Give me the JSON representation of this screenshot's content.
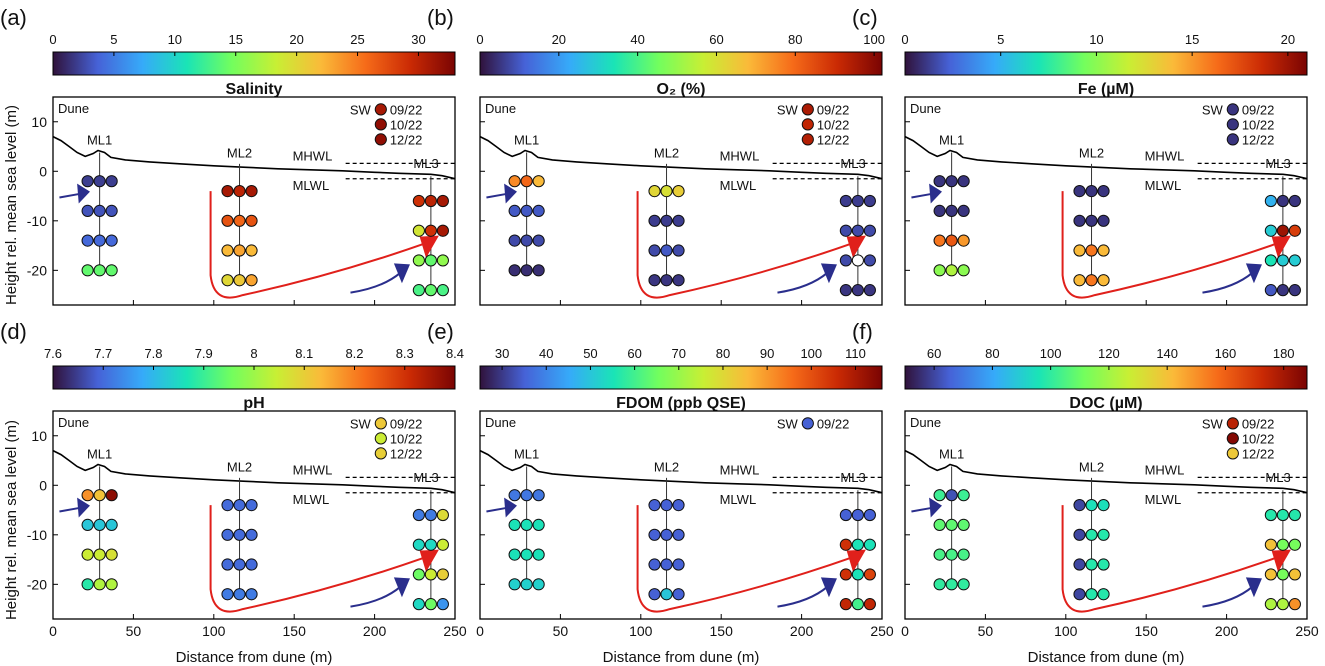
{
  "figure": {
    "ylabel": "Height rel. mean sea level (m)",
    "xlabel": "Distance from dune (m)",
    "labels": {
      "dune": "Dune",
      "ml1": "ML1",
      "ml2": "ML2",
      "ml3": "ML3",
      "mhwl": "MHWL",
      "mlwl": "MLWL",
      "sw": "SW"
    },
    "x_axis": {
      "range": [
        0,
        250
      ],
      "ticks": [
        "0",
        "50",
        "100",
        "150",
        "200",
        "250"
      ]
    },
    "y_axis": {
      "range": [
        -27,
        15
      ],
      "ticks": [
        "10",
        "0",
        "-10",
        "-20"
      ]
    },
    "colormap": [
      "#30123b",
      "#4662d7",
      "#36aaf9",
      "#1ae4b6",
      "#72fe5e",
      "#c8ef34",
      "#faba39",
      "#f66b19",
      "#ca2a04",
      "#7a0403"
    ]
  },
  "chart_data": [
    {
      "panel": "(a)",
      "type": "scatter",
      "title": "Salinity",
      "colorbar": {
        "range": [
          0,
          33
        ],
        "ticks": [
          "0",
          "5",
          "10",
          "15",
          "20",
          "25",
          "30"
        ],
        "tick_values": [
          0,
          5,
          10,
          15,
          20,
          25,
          30
        ]
      },
      "sw": [
        {
          "date": "09/22",
          "value": 31
        },
        {
          "date": "10/22",
          "value": 32
        },
        {
          "date": "12/22",
          "value": 32
        }
      ],
      "points": [
        {
          "x": 29,
          "y": -2,
          "values": [
            2,
            2,
            2
          ]
        },
        {
          "x": 29,
          "y": -8,
          "values": [
            3,
            3,
            3
          ]
        },
        {
          "x": 29,
          "y": -14,
          "values": [
            4,
            4,
            4
          ]
        },
        {
          "x": 29,
          "y": -20,
          "values": [
            14,
            14,
            14
          ]
        },
        {
          "x": 116,
          "y": -4,
          "values": [
            31,
            30,
            31
          ]
        },
        {
          "x": 116,
          "y": -10,
          "values": [
            27,
            26,
            27
          ]
        },
        {
          "x": 116,
          "y": -16,
          "values": [
            22,
            23,
            22
          ]
        },
        {
          "x": 116,
          "y": -22,
          "values": [
            20,
            21,
            23
          ]
        },
        {
          "x": 235,
          "y": -6,
          "values": [
            29,
            30,
            31
          ]
        },
        {
          "x": 235,
          "y": -12,
          "values": [
            19,
            29,
            31
          ]
        },
        {
          "x": 235,
          "y": -18,
          "values": [
            16,
            14,
            16
          ]
        },
        {
          "x": 235,
          "y": -24,
          "values": [
            13,
            14,
            13
          ]
        }
      ]
    },
    {
      "panel": "(b)",
      "type": "scatter",
      "title": "O₂ (%)",
      "colorbar": {
        "range": [
          0,
          102
        ],
        "ticks": [
          "0",
          "20",
          "40",
          "60",
          "80",
          "100"
        ],
        "tick_values": [
          0,
          20,
          40,
          60,
          80,
          100
        ]
      },
      "sw": [
        {
          "date": "09/22",
          "value": 95
        },
        {
          "date": "10/22",
          "value": 92
        },
        {
          "date": "12/22",
          "value": 94
        }
      ],
      "points": [
        {
          "x": 29,
          "y": -2,
          "values": [
            75,
            80,
            68
          ]
        },
        {
          "x": 29,
          "y": -8,
          "values": [
            10,
            10,
            10
          ]
        },
        {
          "x": 29,
          "y": -14,
          "values": [
            8,
            8,
            8
          ]
        },
        {
          "x": 29,
          "y": -20,
          "values": [
            4,
            4,
            4
          ]
        },
        {
          "x": 116,
          "y": -4,
          "values": [
            62,
            60,
            64
          ]
        },
        {
          "x": 116,
          "y": -10,
          "values": [
            6,
            6,
            6
          ]
        },
        {
          "x": 116,
          "y": -16,
          "values": [
            8,
            10,
            8
          ]
        },
        {
          "x": 116,
          "y": -22,
          "values": [
            5,
            5,
            5
          ]
        },
        {
          "x": 235,
          "y": -6,
          "values": [
            6,
            6,
            6
          ]
        },
        {
          "x": 235,
          "y": -12,
          "values": [
            8,
            8,
            8
          ]
        },
        {
          "x": 235,
          "y": -18,
          "values": [
            8,
            null,
            8
          ]
        },
        {
          "x": 235,
          "y": -24,
          "values": [
            5,
            5,
            5
          ]
        }
      ]
    },
    {
      "panel": "(c)",
      "type": "scatter",
      "title": "Fe (µM)",
      "colorbar": {
        "range": [
          0,
          21
        ],
        "ticks": [
          "0",
          "5",
          "10",
          "15",
          "20"
        ],
        "tick_values": [
          0,
          5,
          10,
          15,
          20
        ]
      },
      "sw": [
        {
          "date": "09/22",
          "value": 1
        },
        {
          "date": "10/22",
          "value": 1
        },
        {
          "date": "12/22",
          "value": 1
        }
      ],
      "points": [
        {
          "x": 29,
          "y": -2,
          "values": [
            1,
            1,
            1
          ]
        },
        {
          "x": 29,
          "y": -8,
          "values": [
            1,
            1,
            1
          ]
        },
        {
          "x": 29,
          "y": -14,
          "values": [
            16,
            17,
            15
          ]
        },
        {
          "x": 29,
          "y": -20,
          "values": [
            10,
            11,
            10
          ]
        },
        {
          "x": 116,
          "y": -4,
          "values": [
            1,
            1,
            1
          ]
        },
        {
          "x": 116,
          "y": -10,
          "values": [
            1,
            1,
            1
          ]
        },
        {
          "x": 116,
          "y": -16,
          "values": [
            14,
            16,
            14
          ]
        },
        {
          "x": 116,
          "y": -22,
          "values": [
            14,
            16,
            14
          ]
        },
        {
          "x": 235,
          "y": -6,
          "values": [
            5,
            1,
            1
          ]
        },
        {
          "x": 235,
          "y": -12,
          "values": [
            6,
            20,
            18
          ]
        },
        {
          "x": 235,
          "y": -18,
          "values": [
            7,
            6,
            6
          ]
        },
        {
          "x": 235,
          "y": -24,
          "values": [
            2,
            1,
            1
          ]
        }
      ]
    },
    {
      "panel": "(d)",
      "type": "scatter",
      "title": "pH",
      "colorbar": {
        "range": [
          7.6,
          8.4
        ],
        "ticks": [
          "7.6",
          "7.7",
          "7.8",
          "7.9",
          "8",
          "8.1",
          "8.2",
          "8.3",
          "8.4"
        ],
        "tick_values": [
          7.6,
          7.7,
          7.8,
          7.9,
          8.0,
          8.1,
          8.2,
          8.3,
          8.4
        ]
      },
      "sw": [
        {
          "date": "09/22",
          "value": 8.11
        },
        {
          "date": "10/22",
          "value": 8.05
        },
        {
          "date": "12/22",
          "value": 8.1
        }
      ],
      "points": [
        {
          "x": 29,
          "y": -2,
          "values": [
            8.18,
            8.12,
            8.38
          ]
        },
        {
          "x": 29,
          "y": -8,
          "values": [
            7.82,
            7.82,
            7.82
          ]
        },
        {
          "x": 29,
          "y": -14,
          "values": [
            8.05,
            8.05,
            8.07
          ]
        },
        {
          "x": 29,
          "y": -20,
          "values": [
            7.88,
            8.02,
            8.02
          ]
        },
        {
          "x": 116,
          "y": -4,
          "values": [
            7.7,
            7.7,
            7.7
          ]
        },
        {
          "x": 116,
          "y": -10,
          "values": [
            7.7,
            7.7,
            7.7
          ]
        },
        {
          "x": 116,
          "y": -16,
          "values": [
            7.7,
            7.7,
            7.7
          ]
        },
        {
          "x": 116,
          "y": -22,
          "values": [
            7.72,
            7.72,
            7.72
          ]
        },
        {
          "x": 235,
          "y": -6,
          "values": [
            7.72,
            7.72,
            8.08
          ]
        },
        {
          "x": 235,
          "y": -12,
          "values": [
            7.85,
            7.85,
            8.05
          ]
        },
        {
          "x": 235,
          "y": -18,
          "values": [
            7.95,
            8.05,
            8.1
          ]
        },
        {
          "x": 235,
          "y": -24,
          "values": [
            7.85,
            7.95,
            7.75
          ]
        }
      ]
    },
    {
      "panel": "(e)",
      "type": "scatter",
      "title": "FDOM (ppb QSE)",
      "colorbar": {
        "range": [
          25,
          116
        ],
        "ticks": [
          "30",
          "40",
          "50",
          "60",
          "70",
          "80",
          "90",
          "100",
          "110"
        ],
        "tick_values": [
          30,
          40,
          50,
          60,
          70,
          80,
          90,
          100,
          110
        ]
      },
      "sw": [
        {
          "date": "09/22",
          "value": 35
        }
      ],
      "points": [
        {
          "x": 29,
          "y": -2,
          "values": [
            38,
            38,
            38
          ]
        },
        {
          "x": 29,
          "y": -8,
          "values": [
            55,
            55,
            55
          ]
        },
        {
          "x": 29,
          "y": -14,
          "values": [
            55,
            55,
            55
          ]
        },
        {
          "x": 29,
          "y": -20,
          "values": [
            52,
            52,
            52
          ]
        },
        {
          "x": 116,
          "y": -4,
          "values": [
            35,
            35,
            35
          ]
        },
        {
          "x": 116,
          "y": -10,
          "values": [
            35,
            35,
            35
          ]
        },
        {
          "x": 116,
          "y": -16,
          "values": [
            35,
            35,
            35
          ]
        },
        {
          "x": 116,
          "y": -22,
          "values": [
            35,
            50,
            35
          ]
        },
        {
          "x": 235,
          "y": -6,
          "values": [
            35,
            35,
            35
          ]
        },
        {
          "x": 235,
          "y": -12,
          "values": [
            105,
            55,
            55
          ]
        },
        {
          "x": 235,
          "y": -18,
          "values": [
            105,
            55,
            102
          ]
        },
        {
          "x": 235,
          "y": -24,
          "values": [
            107,
            60,
            107
          ]
        }
      ]
    },
    {
      "panel": "(f)",
      "type": "scatter",
      "title": "DOC (µM)",
      "colorbar": {
        "range": [
          50,
          188
        ],
        "ticks": [
          "60",
          "80",
          "100",
          "120",
          "140",
          "160",
          "180"
        ],
        "tick_values": [
          60,
          80,
          100,
          120,
          140,
          160,
          180
        ]
      },
      "sw": [
        {
          "date": "09/22",
          "value": 176
        },
        {
          "date": "10/22",
          "value": 186
        },
        {
          "date": "12/22",
          "value": 138
        }
      ],
      "points": [
        {
          "x": 29,
          "y": -2,
          "values": [
            102,
            62,
            102
          ]
        },
        {
          "x": 29,
          "y": -8,
          "values": [
            108,
            108,
            108
          ]
        },
        {
          "x": 29,
          "y": -14,
          "values": [
            104,
            104,
            104
          ]
        },
        {
          "x": 29,
          "y": -20,
          "values": [
            100,
            100,
            100
          ]
        },
        {
          "x": 116,
          "y": -4,
          "values": [
            60,
            95,
            95
          ]
        },
        {
          "x": 116,
          "y": -10,
          "values": [
            60,
            98,
            98
          ]
        },
        {
          "x": 116,
          "y": -16,
          "values": [
            60,
            98,
            98
          ]
        },
        {
          "x": 116,
          "y": -22,
          "values": [
            60,
            98,
            98
          ]
        },
        {
          "x": 235,
          "y": -6,
          "values": [
            98,
            98,
            98
          ]
        },
        {
          "x": 235,
          "y": -12,
          "values": [
            140,
            112,
            112
          ]
        },
        {
          "x": 235,
          "y": -18,
          "values": [
            140,
            112,
            140
          ]
        },
        {
          "x": 235,
          "y": -24,
          "values": [
            122,
            122,
            150
          ]
        }
      ]
    }
  ]
}
